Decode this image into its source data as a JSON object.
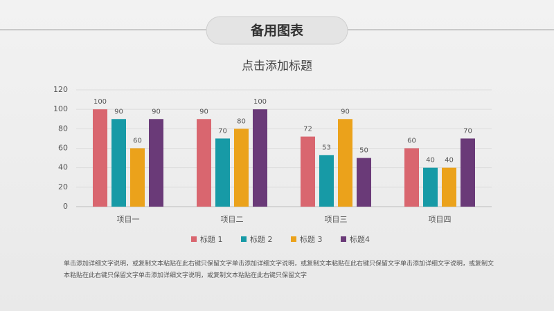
{
  "header": {
    "title": "备用图表"
  },
  "chart_data": {
    "type": "bar",
    "title": "点击添加标题",
    "categories": [
      "项目一",
      "项目二",
      "项目三",
      "项目四"
    ],
    "series": [
      {
        "name": "标题 1",
        "color": "#d9666f",
        "values": [
          100,
          90,
          72,
          60
        ]
      },
      {
        "name": "标题 2",
        "color": "#179aa6",
        "values": [
          90,
          70,
          53,
          40
        ]
      },
      {
        "name": "标题 3",
        "color": "#eba21b",
        "values": [
          60,
          80,
          90,
          40
        ]
      },
      {
        "name": "标题4",
        "color": "#6a3a78",
        "values": [
          90,
          100,
          50,
          70
        ]
      }
    ],
    "ylim": [
      0,
      120
    ],
    "yticks": [
      0,
      20,
      40,
      60,
      80,
      100,
      120
    ],
    "grid": true,
    "legend": "bottom"
  },
  "footer": {
    "text": "单击添加详细文字说明，或复制文本粘贴在此右键只保留文字单击添加详细文字说明，或复制文本粘贴在此右键只保留文字单击添加详细文字说明，或复制文本粘贴在此右键只保留文字单击添加详细文字说明，或复制文本粘贴在此右键只保留文字"
  }
}
